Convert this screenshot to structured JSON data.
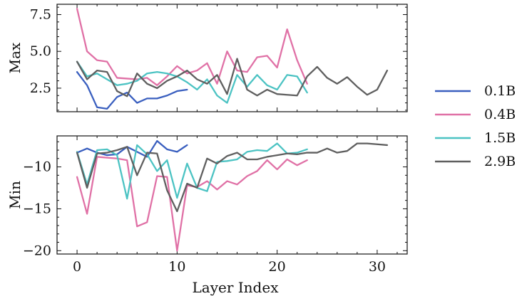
{
  "chart_data": {
    "type": "line",
    "xlabel": "Layer Index",
    "legend": {
      "placement": "right",
      "entries": [
        "0.1B",
        "0.4B",
        "1.5B",
        "2.9B"
      ]
    },
    "colors": {
      "0.1B": "#3a5fbf",
      "0.4B": "#e071a6",
      "1.5B": "#4cc3c3",
      "2.9B": "#5f5f5f"
    },
    "xlim": [
      -2,
      33
    ],
    "xticks": [
      "0",
      "10",
      "20",
      "30"
    ],
    "panels": [
      {
        "ylabel": "Max",
        "ylim": [
          0.9,
          8.2
        ],
        "yticks": [
          "2.5",
          "5.0",
          "7.5"
        ],
        "series": [
          {
            "name": "0.1B",
            "x": [
              0,
              1,
              2,
              3,
              4,
              5,
              6,
              7,
              8,
              9,
              10,
              11
            ],
            "values": [
              3.6,
              2.7,
              1.2,
              1.1,
              1.9,
              2.2,
              1.5,
              1.8,
              1.8,
              2.0,
              2.3,
              2.4
            ]
          },
          {
            "name": "0.4B",
            "x": [
              0,
              1,
              2,
              3,
              4,
              5,
              6,
              7,
              8,
              9,
              10,
              11,
              12,
              13,
              14,
              15,
              16,
              17,
              18,
              19,
              20,
              21,
              22,
              23
            ],
            "values": [
              7.9,
              5.0,
              4.4,
              4.3,
              3.2,
              3.15,
              3.1,
              3.2,
              2.7,
              3.3,
              4.0,
              3.5,
              3.7,
              4.2,
              2.8,
              5.0,
              3.7,
              3.6,
              4.6,
              4.7,
              3.9,
              6.5,
              4.4,
              2.8
            ]
          },
          {
            "name": "1.5B",
            "x": [
              0,
              1,
              2,
              3,
              4,
              5,
              6,
              7,
              8,
              9,
              10,
              11,
              12,
              13,
              14,
              15,
              16,
              17,
              18,
              19,
              20,
              21,
              22,
              23
            ],
            "values": [
              4.3,
              3.3,
              3.5,
              3.1,
              2.7,
              2.8,
              3.0,
              3.5,
              3.6,
              3.5,
              3.3,
              2.9,
              2.4,
              3.1,
              2.0,
              1.5,
              3.4,
              2.6,
              3.4,
              2.7,
              2.4,
              3.4,
              3.3,
              2.2
            ]
          },
          {
            "name": "2.9B",
            "x": [
              0,
              1,
              2,
              3,
              4,
              5,
              6,
              7,
              8,
              9,
              10,
              11,
              12,
              13,
              14,
              15,
              16,
              17,
              18,
              19,
              20,
              21,
              22,
              23,
              24,
              25,
              26,
              27,
              28,
              29,
              30,
              31
            ],
            "values": [
              4.3,
              3.1,
              3.7,
              3.6,
              2.3,
              1.95,
              3.5,
              2.8,
              2.5,
              3.0,
              3.3,
              3.7,
              3.1,
              2.8,
              3.4,
              2.1,
              4.5,
              2.4,
              2.0,
              2.4,
              2.1,
              2.05,
              2.0,
              3.3,
              3.95,
              3.2,
              2.8,
              3.25,
              2.6,
              2.05,
              2.4,
              3.7
            ]
          }
        ]
      },
      {
        "ylabel": "Min",
        "ylim": [
          -20.4,
          -6.3
        ],
        "yticks": [
          "-20",
          "-15",
          "-10"
        ],
        "series": [
          {
            "name": "0.1B",
            "x": [
              0,
              1,
              2,
              3,
              4,
              5,
              6,
              7,
              8,
              9,
              10,
              11
            ],
            "values": [
              -8.3,
              -7.8,
              -8.3,
              -8.6,
              -8.5,
              -7.6,
              -8.2,
              -8.8,
              -6.9,
              -7.9,
              -8.2,
              -7.4
            ]
          },
          {
            "name": "0.4B",
            "x": [
              0,
              1,
              2,
              3,
              4,
              5,
              6,
              7,
              8,
              9,
              10,
              11,
              12,
              13,
              14,
              15,
              16,
              17,
              18,
              19,
              20,
              21,
              22,
              23
            ],
            "values": [
              -11.2,
              -15.6,
              -8.8,
              -8.9,
              -9.0,
              -9.2,
              -17.1,
              -16.6,
              -11.1,
              -11.2,
              -20.0,
              -12.2,
              -12.4,
              -11.7,
              -12.7,
              -11.7,
              -12.1,
              -11.1,
              -10.5,
              -9.2,
              -10.3,
              -9.1,
              -9.8,
              -9.2
            ]
          },
          {
            "name": "1.5B",
            "x": [
              0,
              1,
              2,
              3,
              4,
              5,
              6,
              7,
              8,
              9,
              10,
              11,
              12,
              13,
              14,
              15,
              16,
              17,
              18,
              19,
              20,
              21,
              22,
              23
            ],
            "values": [
              -8.2,
              -12.1,
              -8.0,
              -7.9,
              -8.6,
              -13.8,
              -7.4,
              -8.5,
              -10.5,
              -9.2,
              -13.7,
              -9.6,
              -12.5,
              -12.9,
              -9.4,
              -9.3,
              -9.1,
              -8.2,
              -8.0,
              -8.1,
              -7.2,
              -8.4,
              -8.3,
              -7.9
            ]
          },
          {
            "name": "2.9B",
            "x": [
              0,
              1,
              2,
              3,
              4,
              5,
              6,
              7,
              8,
              9,
              10,
              11,
              12,
              13,
              14,
              15,
              16,
              17,
              18,
              19,
              20,
              21,
              22,
              23,
              24,
              25,
              26,
              27,
              28,
              29,
              30,
              31
            ],
            "values": [
              -8.3,
              -12.5,
              -8.4,
              -8.3,
              -8.0,
              -7.6,
              -11.0,
              -8.3,
              -8.4,
              -12.8,
              -15.3,
              -12.0,
              -12.5,
              -9.0,
              -9.6,
              -8.7,
              -8.3,
              -9.1,
              -9.1,
              -8.8,
              -8.6,
              -8.4,
              -8.5,
              -8.3,
              -8.3,
              -7.8,
              -8.3,
              -8.1,
              -7.2,
              -7.2,
              -7.3,
              -7.4
            ]
          }
        ]
      }
    ]
  }
}
